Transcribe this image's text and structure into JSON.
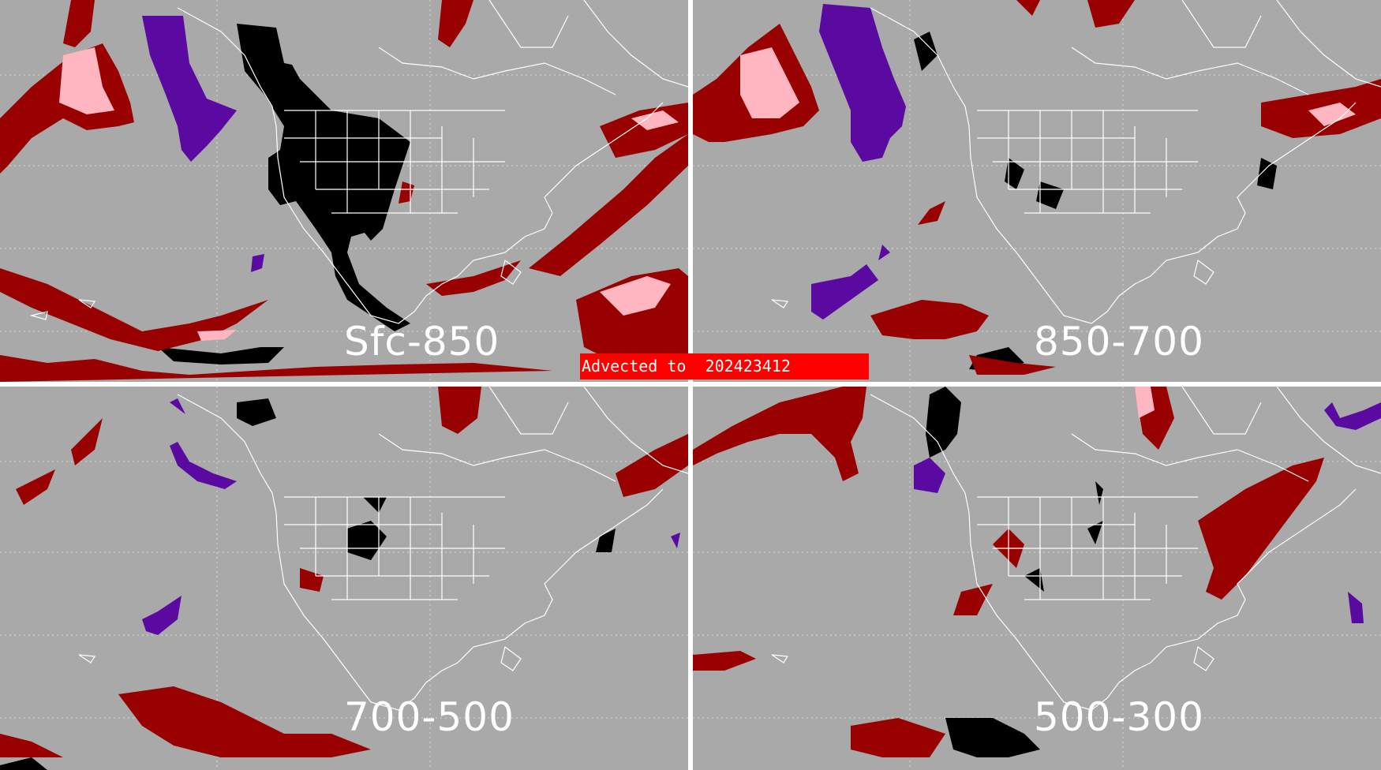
{
  "banner": {
    "text": "Advected to  202423412",
    "color": "#ff0000"
  },
  "panels": [
    {
      "id": "tl",
      "label": "Sfc-850"
    },
    {
      "id": "tr",
      "label": "850-700"
    },
    {
      "id": "bl",
      "label": "700-500"
    },
    {
      "id": "br",
      "label": "500-300"
    }
  ],
  "colors": {
    "background": "#a9a9a9",
    "dark_red": "#990000",
    "pink": "#ffb6c1",
    "purple": "#5a0aa0",
    "black": "#000000",
    "map_lines": "#ffffff"
  }
}
